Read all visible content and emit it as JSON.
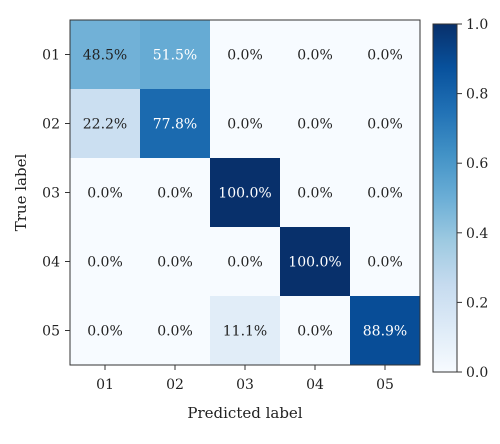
{
  "chart_data": {
    "type": "heatmap",
    "title": "",
    "xlabel": "Predicted label",
    "ylabel": "True label",
    "x_categories": [
      "01",
      "02",
      "03",
      "04",
      "05"
    ],
    "y_categories": [
      "01",
      "02",
      "03",
      "04",
      "05"
    ],
    "matrix": [
      [
        0.485,
        0.515,
        0.0,
        0.0,
        0.0
      ],
      [
        0.222,
        0.778,
        0.0,
        0.0,
        0.0
      ],
      [
        0.0,
        0.0,
        1.0,
        0.0,
        0.0
      ],
      [
        0.0,
        0.0,
        0.0,
        1.0,
        0.0
      ],
      [
        0.0,
        0.0,
        0.111,
        0.0,
        0.889
      ]
    ],
    "cell_labels": [
      [
        "48.5%",
        "51.5%",
        "0.0%",
        "0.0%",
        "0.0%"
      ],
      [
        "22.2%",
        "77.8%",
        "0.0%",
        "0.0%",
        "0.0%"
      ],
      [
        "0.0%",
        "0.0%",
        "100.0%",
        "0.0%",
        "0.0%"
      ],
      [
        "0.0%",
        "0.0%",
        "0.0%",
        "100.0%",
        "0.0%"
      ],
      [
        "0.0%",
        "0.0%",
        "11.1%",
        "0.0%",
        "88.9%"
      ]
    ],
    "colorbar": {
      "range": [
        0.0,
        1.0
      ],
      "ticks": [
        "0.0",
        "0.2",
        "0.4",
        "0.6",
        "0.8",
        "1.0"
      ],
      "colormap": "Blues"
    },
    "colors": {
      "min": "#f7fbff",
      "max": "#08306b",
      "text_dark": "#222222",
      "text_light": "#ffffff"
    }
  }
}
